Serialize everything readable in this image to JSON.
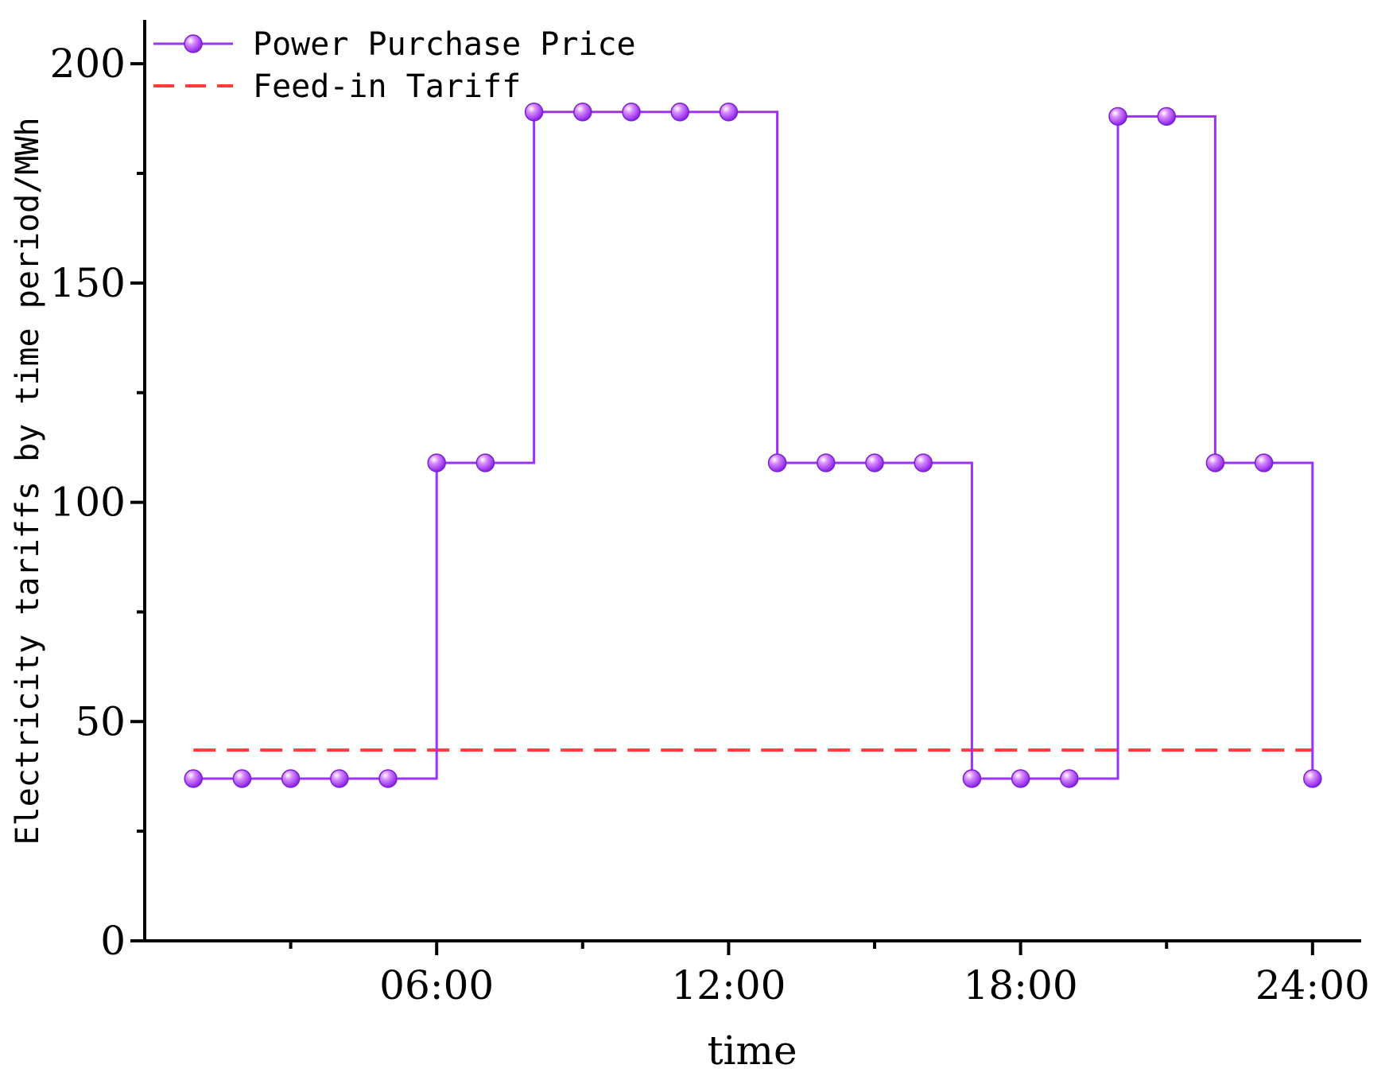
{
  "chart_data": {
    "type": "line",
    "title": "",
    "xlabel": "time",
    "ylabel": "Electricity tariffs by time period/MWh",
    "x_tick_labels": [
      "06:00",
      "12:00",
      "18:00",
      "24:00"
    ],
    "x_tick_positions": [
      6,
      12,
      18,
      24
    ],
    "y_ticks": [
      0,
      50,
      100,
      150,
      200
    ],
    "y_tick_labels": [
      "0",
      "50",
      "100",
      "150",
      "200"
    ],
    "xlim": [
      0,
      25
    ],
    "ylim": [
      0,
      210
    ],
    "grid": false,
    "legend": "top-left",
    "x": [
      1,
      2,
      3,
      4,
      5,
      6,
      7,
      8,
      9,
      10,
      11,
      12,
      13,
      14,
      15,
      16,
      17,
      18,
      19,
      20,
      21,
      22,
      23,
      24
    ],
    "series": [
      {
        "name": "Power Purchase Price",
        "style": "step-post",
        "marker": "circle",
        "color": "#9B30FF",
        "values": [
          37,
          37,
          37,
          37,
          37,
          109,
          109,
          189,
          189,
          189,
          189,
          189,
          109,
          109,
          109,
          109,
          37,
          37,
          37,
          188,
          188,
          109,
          109,
          37
        ]
      },
      {
        "name": "Feed-in Tariff",
        "style": "dashed",
        "color": "#FF3B3B",
        "values": [
          43.5,
          43.5,
          43.5,
          43.5,
          43.5,
          43.5,
          43.5,
          43.5,
          43.5,
          43.5,
          43.5,
          43.5,
          43.5,
          43.5,
          43.5,
          43.5,
          43.5,
          43.5,
          43.5,
          43.5,
          43.5,
          43.5,
          43.5,
          43.5
        ]
      }
    ]
  }
}
